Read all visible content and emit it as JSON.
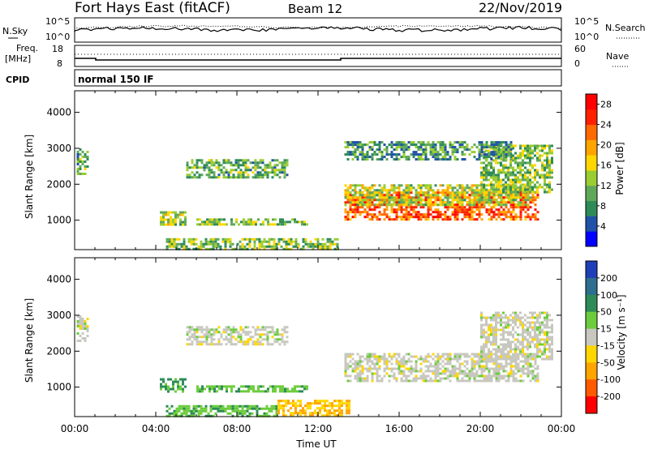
{
  "header": {
    "station": "Fort Hays East (fitACF)",
    "beam": "Beam 12",
    "date": "22/Nov/2019"
  },
  "top_panels": {
    "nsky_label": "N.Sky",
    "nsearch_label": "N.Search",
    "freq_label_line1": "Freq.",
    "freq_label_line2": "[MHz]",
    "nave_label": "Nave",
    "cpid_label": "CPID",
    "cpid_text": "normal 150 IF",
    "noise_ticks": [
      "10^5",
      "10^0"
    ],
    "freq_ticks_left": [
      "18",
      "8"
    ],
    "freq_ticks_right": [
      "60",
      "0"
    ]
  },
  "chart_data": [
    {
      "type": "heatmap",
      "title": "",
      "xlabel": "Time UT",
      "ylabel": "Slant Range [km]",
      "x_ticks": [
        "00:00",
        "04:00",
        "08:00",
        "12:00",
        "16:00",
        "20:00",
        "00:00"
      ],
      "xlim_hours": [
        0,
        24
      ],
      "y_ticks": [
        1000,
        2000,
        3000,
        4000
      ],
      "ylim": [
        180,
        4600
      ],
      "colorbar": {
        "label": "Power [dB]",
        "ticks": [
          4,
          8,
          12,
          16,
          20,
          24,
          28
        ],
        "range": [
          0,
          30
        ],
        "colors": [
          "#0000ff",
          "#1f52a8",
          "#2e8b57",
          "#5fa85a",
          "#9acd32",
          "#ffd700",
          "#ffa500",
          "#ff6a00",
          "#ff2000",
          "#ff0000"
        ]
      },
      "regions": [
        {
          "t": [
            13.3,
            22.8
          ],
          "r": [
            1050,
            1800
          ],
          "power": 24
        },
        {
          "t": [
            13.3,
            22.5
          ],
          "r": [
            1400,
            2000
          ],
          "power": 14
        },
        {
          "t": [
            4.2,
            5.5
          ],
          "r": [
            850,
            1250
          ],
          "power": 14
        },
        {
          "t": [
            6.0,
            11.5
          ],
          "r": [
            850,
            1050
          ],
          "power": 12
        },
        {
          "t": [
            5.5,
            10.5
          ],
          "r": [
            2200,
            2700
          ],
          "power": 10
        },
        {
          "t": [
            4.5,
            13.0
          ],
          "r": [
            200,
            500
          ],
          "power": 12
        },
        {
          "t": [
            0.1,
            0.6
          ],
          "r": [
            2300,
            3000
          ],
          "power": 10
        },
        {
          "t": [
            20.0,
            23.5
          ],
          "r": [
            1800,
            3100
          ],
          "power": 12
        },
        {
          "t": [
            13.3,
            21.5
          ],
          "r": [
            2700,
            3200
          ],
          "power": 8
        }
      ]
    },
    {
      "type": "heatmap",
      "title": "",
      "xlabel": "Time UT",
      "ylabel": "Slant Range [km]",
      "x_ticks": [
        "00:00",
        "04:00",
        "08:00",
        "12:00",
        "16:00",
        "20:00",
        "00:00"
      ],
      "xlim_hours": [
        0,
        24
      ],
      "y_ticks": [
        1000,
        2000,
        3000,
        4000
      ],
      "ylim": [
        180,
        4600
      ],
      "colorbar": {
        "label": "Velocity [m s⁻¹]",
        "ticks": [
          200,
          100,
          50,
          15,
          -15,
          -50,
          -100,
          -200
        ],
        "colors": [
          "#1f3fb8",
          "#2e6e8e",
          "#2e8b57",
          "#6ccd3c",
          "#c8c8c0",
          "#ffd700",
          "#ffa500",
          "#ff5a00",
          "#ff0000"
        ]
      },
      "regions": [
        {
          "t": [
            13.3,
            22.8
          ],
          "r": [
            1150,
            1950
          ],
          "velocity": 0
        },
        {
          "t": [
            4.2,
            5.5
          ],
          "r": [
            850,
            1250
          ],
          "velocity": 60
        },
        {
          "t": [
            6.0,
            11.5
          ],
          "r": [
            850,
            1050
          ],
          "velocity": 40
        },
        {
          "t": [
            5.5,
            10.5
          ],
          "r": [
            2200,
            2700
          ],
          "velocity": 0
        },
        {
          "t": [
            4.5,
            10.0
          ],
          "r": [
            200,
            500
          ],
          "velocity": 40
        },
        {
          "t": [
            10.0,
            13.5
          ],
          "r": [
            200,
            650
          ],
          "velocity": -50
        },
        {
          "t": [
            0.1,
            0.6
          ],
          "r": [
            2300,
            3000
          ],
          "velocity": 0
        },
        {
          "t": [
            20.0,
            23.5
          ],
          "r": [
            1800,
            3100
          ],
          "velocity": 0
        }
      ]
    }
  ]
}
